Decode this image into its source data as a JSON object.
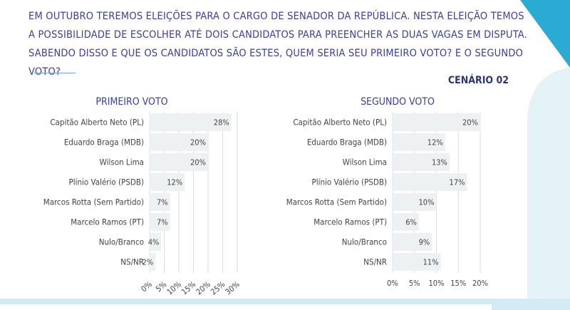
{
  "question": "EM OUTUBRO TEREMOS ELEIÇÕES PARA O CARGO DE SENADOR DA REPÚBLICA. NESTA ELEIÇÃO TEMOS A POSSIBILIDADE DE ESCOLHER ATÉ DOIS CANDIDATOS PARA PREENCHER AS DUAS VAGAS EM DISPUTA. SABENDO DISSO E QUE OS CANDIDATOS SÃO ESTES, QUEM SERIA SEU PRIMEIRO VOTO? E O SEGUNDO VOTO?",
  "scenario": "CENÁRIO 02",
  "colors": {
    "text": "#3a3f97",
    "bar": "#eef1f1",
    "accent": "#29abd4"
  },
  "chart_data": [
    {
      "type": "bar",
      "orientation": "horizontal",
      "title": "PRIMEIRO VOTO",
      "categories": [
        "Capitão Alberto Neto (PL)",
        "Eduardo Braga (MDB)",
        "Wilson Lima",
        "Plínio Valério (PSDB)",
        "Marcos Rotta (Sem Partido)",
        "Marcelo Ramos (PT)",
        "Nulo/Branco",
        "NS/NR"
      ],
      "values": [
        28,
        20,
        20,
        12,
        7,
        7,
        4,
        2
      ],
      "value_labels": [
        "28%",
        "20%",
        "20%",
        "12%",
        "7%",
        "7%",
        "4%",
        "2%"
      ],
      "xlim": [
        0,
        30
      ],
      "xticks": [
        "0%",
        "5%",
        "10%",
        "15%",
        "20%",
        "25%",
        "30%"
      ],
      "grid": true
    },
    {
      "type": "bar",
      "orientation": "horizontal",
      "title": "SEGUNDO VOTO",
      "categories": [
        "Capitão Alberto Neto (PL)",
        "Eduardo Braga (MDB)",
        "Wilson Lima",
        "Plínio Valério (PSDB)",
        "Marcos Rotta (Sem Partido)",
        "Marcelo Ramos (PT)",
        "Nulo/Branco",
        "NS/NR"
      ],
      "values": [
        20,
        12,
        13,
        17,
        10,
        6,
        9,
        11
      ],
      "value_labels": [
        "20%",
        "12%",
        "13%",
        "17%",
        "10%",
        "6%",
        "9%",
        "11%"
      ],
      "xlim": [
        0,
        20
      ],
      "xticks": [
        "0%",
        "5%",
        "10%",
        "15%",
        "20%"
      ],
      "grid": true
    }
  ]
}
